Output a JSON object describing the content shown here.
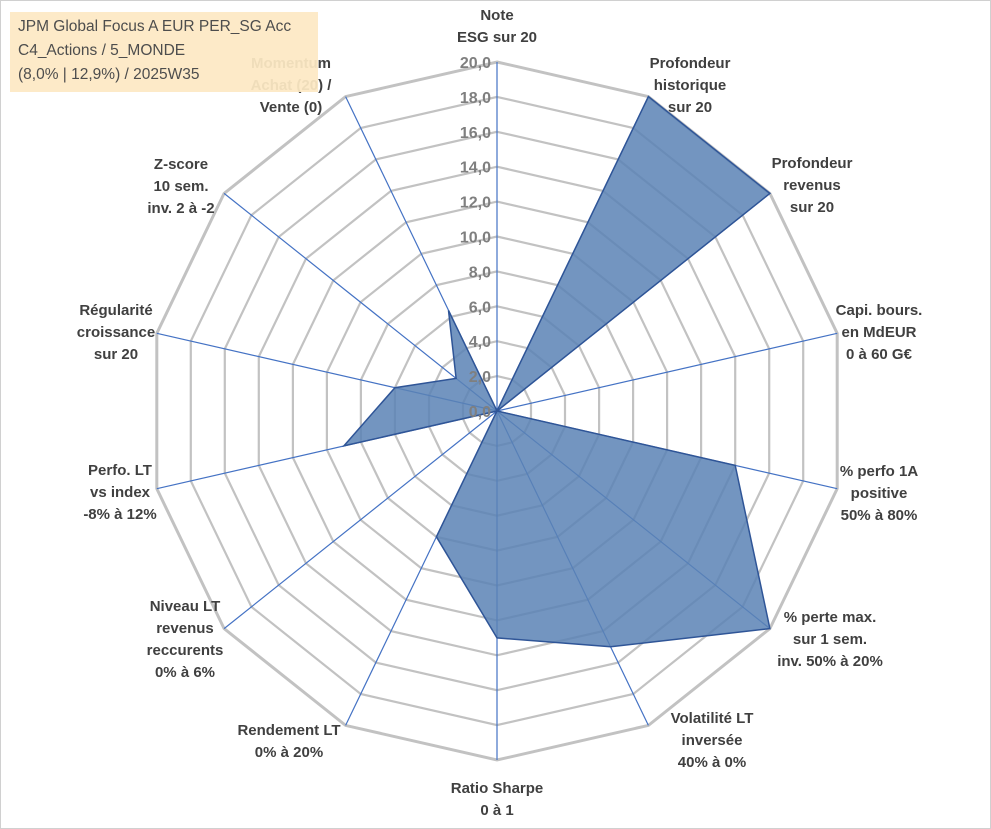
{
  "info_box": {
    "line1": "JPM Global Focus A EUR PER_SG Acc",
    "line2": "C4_Actions / 5_MONDE",
    "line3": "(8,0% | 12,9%) / 2025W35"
  },
  "chart_data": {
    "type": "radar",
    "title": "",
    "rlim": [
      0,
      20
    ],
    "ticks": [
      "0,0",
      "2,0",
      "4,0",
      "6,0",
      "8,0",
      "10,0",
      "12,0",
      "14,0",
      "16,0",
      "18,0",
      "20,0"
    ],
    "grid": true,
    "axes": [
      [
        "Note",
        "ESG sur 20"
      ],
      [
        "Profondeur",
        "historique",
        "sur 20"
      ],
      [
        "Profondeur",
        "revenus",
        "sur 20"
      ],
      [
        "Capi. bours.",
        "en MdEUR",
        "0 à 60 G€"
      ],
      [
        "% perfo 1A",
        "positive",
        "50% à 80%"
      ],
      [
        "% perte max.",
        "sur 1 sem.",
        "inv. 50% à 20%"
      ],
      [
        "Volatilité LT",
        "inversée",
        "40% à 0%"
      ],
      [
        "Ratio Sharpe",
        "0 à 1"
      ],
      [
        "Rendement LT",
        "0% à 20%"
      ],
      [
        "Niveau LT",
        "revenus",
        "reccurents",
        "0% à 6%"
      ],
      [
        "Perfo. LT",
        "vs index",
        "-8% à 12%"
      ],
      [
        "Régularité",
        "croissance",
        "sur 20"
      ],
      [
        "Z-score",
        "10 sem.",
        "inv. 2 à -2"
      ],
      [
        "Momentum",
        "Achat (20) /",
        "Vente (0)"
      ]
    ],
    "series": [
      {
        "values": [
          0,
          20,
          20,
          0,
          14,
          20,
          15,
          13,
          8,
          0,
          9,
          6,
          3,
          6.4
        ]
      }
    ],
    "colors": {
      "fill": "#5a83b5",
      "stroke": "#2f5597",
      "spoke": "#4472c4",
      "grid": "#c2c2c2"
    }
  }
}
